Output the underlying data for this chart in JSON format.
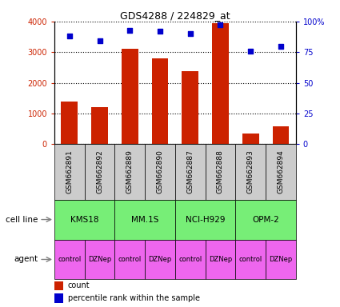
{
  "title": "GDS4288 / 224829_at",
  "samples": [
    "GSM662891",
    "GSM662892",
    "GSM662889",
    "GSM662890",
    "GSM662887",
    "GSM662888",
    "GSM662893",
    "GSM662894"
  ],
  "counts": [
    1400,
    1200,
    3100,
    2800,
    2380,
    3950,
    350,
    580
  ],
  "percentiles": [
    88,
    84,
    93,
    92,
    90,
    97,
    76,
    80
  ],
  "agents": [
    "control",
    "DZNep",
    "control",
    "DZNep",
    "control",
    "DZNep",
    "control",
    "DZNep"
  ],
  "cell_line_groups": [
    [
      0,
      1,
      "KMS18"
    ],
    [
      2,
      3,
      "MM.1S"
    ],
    [
      4,
      5,
      "NCI-H929"
    ],
    [
      6,
      7,
      "OPM-2"
    ]
  ],
  "bar_color": "#cc2200",
  "dot_color": "#0000cc",
  "cell_line_color": "#77ee77",
  "agent_color": "#ee66ee",
  "sample_bg_color": "#cccccc",
  "ylim_left": [
    0,
    4000
  ],
  "ylim_right": [
    0,
    100
  ],
  "yticks_left": [
    0,
    1000,
    2000,
    3000,
    4000
  ],
  "ytick_labels_left": [
    "0",
    "1000",
    "2000",
    "3000",
    "4000"
  ],
  "yticks_right": [
    0,
    25,
    50,
    75,
    100
  ],
  "ytick_labels_right": [
    "0",
    "25",
    "50",
    "75",
    "100%"
  ],
  "legend_count_label": "count",
  "legend_pct_label": "percentile rank within the sample",
  "cell_line_row_label": "cell line",
  "agent_row_label": "agent",
  "figsize": [
    4.25,
    3.84
  ],
  "dpi": 100
}
